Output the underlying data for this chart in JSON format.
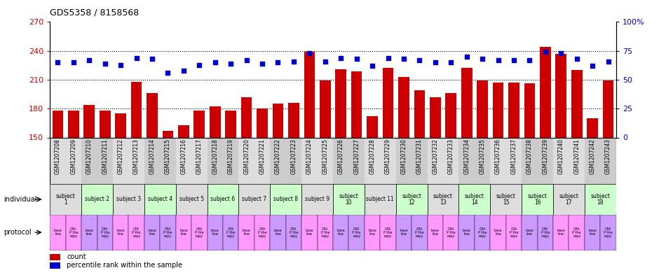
{
  "title": "GDS5358 / 8158568",
  "samples": [
    "GSM1207208",
    "GSM1207209",
    "GSM1207210",
    "GSM1207211",
    "GSM1207212",
    "GSM1207213",
    "GSM1207214",
    "GSM1207215",
    "GSM1207216",
    "GSM1207217",
    "GSM1207218",
    "GSM1207219",
    "GSM1207220",
    "GSM1207221",
    "GSM1207222",
    "GSM1207223",
    "GSM1207224",
    "GSM1207225",
    "GSM1207226",
    "GSM1207227",
    "GSM1207228",
    "GSM1207229",
    "GSM1207230",
    "GSM1207231",
    "GSM1207232",
    "GSM1207233",
    "GSM1207234",
    "GSM1207235",
    "GSM1207236",
    "GSM1207237",
    "GSM1207238",
    "GSM1207239",
    "GSM1207240",
    "GSM1207241",
    "GSM1207242",
    "GSM1207243"
  ],
  "counts": [
    178,
    178,
    184,
    178,
    175,
    208,
    196,
    157,
    163,
    178,
    182,
    178,
    192,
    180,
    185,
    186,
    239,
    209,
    221,
    219,
    172,
    222,
    213,
    199,
    192,
    196,
    222,
    209,
    207,
    207,
    206,
    244,
    237,
    220,
    170,
    209
  ],
  "percentiles": [
    65,
    65,
    67,
    64,
    63,
    69,
    68,
    56,
    58,
    63,
    65,
    64,
    67,
    64,
    65,
    66,
    73,
    66,
    69,
    68,
    62,
    69,
    68,
    67,
    65,
    65,
    70,
    68,
    67,
    67,
    67,
    74,
    73,
    68,
    62,
    66
  ],
  "ylim_left": [
    150,
    270
  ],
  "ylim_right": [
    0,
    100
  ],
  "yticks_left": [
    150,
    180,
    210,
    240,
    270
  ],
  "yticks_right": [
    0,
    25,
    50,
    75,
    100
  ],
  "bar_color": "#cc0000",
  "dot_color": "#0000cc",
  "subjects": [
    {
      "label": "subject\n1",
      "start": 0,
      "end": 2,
      "color": "#dddddd"
    },
    {
      "label": "subject 2",
      "start": 2,
      "end": 4,
      "color": "#ccffcc"
    },
    {
      "label": "subject 3",
      "start": 4,
      "end": 6,
      "color": "#dddddd"
    },
    {
      "label": "subject 4",
      "start": 6,
      "end": 8,
      "color": "#ccffcc"
    },
    {
      "label": "subject 5",
      "start": 8,
      "end": 10,
      "color": "#dddddd"
    },
    {
      "label": "subject 6",
      "start": 10,
      "end": 12,
      "color": "#ccffcc"
    },
    {
      "label": "subject 7",
      "start": 12,
      "end": 14,
      "color": "#dddddd"
    },
    {
      "label": "subject 8",
      "start": 14,
      "end": 16,
      "color": "#ccffcc"
    },
    {
      "label": "subject 9",
      "start": 16,
      "end": 18,
      "color": "#dddddd"
    },
    {
      "label": "subject\n10",
      "start": 18,
      "end": 20,
      "color": "#ccffcc"
    },
    {
      "label": "subject 11",
      "start": 20,
      "end": 22,
      "color": "#dddddd"
    },
    {
      "label": "subject\n12",
      "start": 22,
      "end": 24,
      "color": "#ccffcc"
    },
    {
      "label": "subject\n13",
      "start": 24,
      "end": 26,
      "color": "#dddddd"
    },
    {
      "label": "subject\n14",
      "start": 26,
      "end": 28,
      "color": "#ccffcc"
    },
    {
      "label": "subject\n15",
      "start": 28,
      "end": 30,
      "color": "#dddddd"
    },
    {
      "label": "subject\n16",
      "start": 30,
      "end": 32,
      "color": "#ccffcc"
    },
    {
      "label": "subject\n17",
      "start": 32,
      "end": 34,
      "color": "#dddddd"
    },
    {
      "label": "subject\n18",
      "start": 34,
      "end": 36,
      "color": "#ccffcc"
    }
  ],
  "xtick_bg_colors": [
    "#dddddd",
    "#dddddd",
    "#cccccc",
    "#cccccc",
    "#dddddd",
    "#dddddd",
    "#cccccc",
    "#cccccc",
    "#dddddd",
    "#dddddd",
    "#cccccc",
    "#cccccc",
    "#dddddd",
    "#dddddd",
    "#cccccc",
    "#cccccc",
    "#dddddd",
    "#dddddd",
    "#cccccc",
    "#cccccc",
    "#dddddd",
    "#dddddd",
    "#cccccc",
    "#cccccc",
    "#dddddd",
    "#dddddd",
    "#cccccc",
    "#cccccc",
    "#dddddd",
    "#dddddd",
    "#cccccc",
    "#cccccc",
    "#dddddd",
    "#dddddd",
    "#cccccc",
    "#cccccc"
  ],
  "proto_colors": [
    "#ff99ff",
    "#ff99ff",
    "#cc99ff",
    "#cc99ff",
    "#ff99ff",
    "#ff99ff",
    "#cc99ff",
    "#cc99ff",
    "#ff99ff",
    "#ff99ff",
    "#cc99ff",
    "#cc99ff",
    "#ff99ff",
    "#ff99ff",
    "#cc99ff",
    "#cc99ff",
    "#ff99ff",
    "#ff99ff",
    "#cc99ff",
    "#cc99ff",
    "#ff99ff",
    "#ff99ff",
    "#cc99ff",
    "#cc99ff",
    "#ff99ff",
    "#ff99ff",
    "#cc99ff",
    "#cc99ff",
    "#ff99ff",
    "#ff99ff",
    "#cc99ff",
    "#cc99ff",
    "#ff99ff",
    "#ff99ff",
    "#cc99ff",
    "#cc99ff"
  ],
  "proto_labels": [
    "base\nline",
    "CPA\nP the\nrapy",
    "base\nline",
    "CPA\nP the\nrapy",
    "base\nline",
    "CPA\nP the\nrapy",
    "base\nline",
    "CPA\nP the\nrapy",
    "base\nline",
    "CPA\nP the\nrapy",
    "base\nline",
    "CPA\nP the\nrapy",
    "base\nline",
    "CPA\nP the\nrapy",
    "base\nline",
    "CPA\nP the\nrapy",
    "base\nline",
    "CPA\nP the\nrapy",
    "base\nline",
    "CPA\nP the\nrapy",
    "base\nline",
    "CPA\nP the\nrapy",
    "base\nline",
    "CPA\nP the\nrapy",
    "base\nline",
    "CPA\nP the\nrapy",
    "base\nline",
    "CPA\nP the\nrapy",
    "base\nline",
    "CPA\nP the\nrapy",
    "base\nline",
    "CPA\nP the\nrapy",
    "base\nline",
    "CPA\nP the\nrapy",
    "base\nline",
    "CPA\nP the\nrapy"
  ],
  "legend_count_label": "count",
  "legend_pct_label": "percentile rank within the sample",
  "individual_label": "individual",
  "protocol_label": "protocol"
}
